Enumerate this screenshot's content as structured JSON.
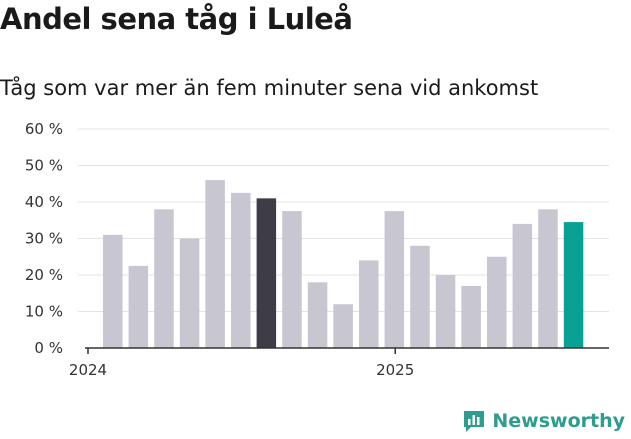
{
  "header": {
    "title": "Andel sena tåg i Luleå",
    "subtitle": "Tåg som var mer än fem minuter sena vid ankomst"
  },
  "brand": {
    "name": "Newsworthy",
    "icon": "newsworthy-logo-icon",
    "color": "#2e9c8f"
  },
  "colors": {
    "default": "#c8c6d1",
    "highlight_dark": "#3d3c47",
    "highlight_latest": "#0aa195",
    "grid": "#e3e3e3",
    "axis": "#333333"
  },
  "chart_data": {
    "type": "bar",
    "title": "Andel sena tåg i Luleå",
    "subtitle": "Tåg som var mer än fem minuter sena vid ankomst",
    "xlabel": "",
    "ylabel": "",
    "x_tick_labels": [
      {
        "label": "2024",
        "index": 0
      },
      {
        "label": "2025",
        "index": 12
      }
    ],
    "y_tick_labels": [
      "0 %",
      "10 %",
      "20 %",
      "30 %",
      "40 %",
      "50 %",
      "60 %"
    ],
    "ylim": [
      0,
      60
    ],
    "grid": true,
    "values": [
      31,
      22.5,
      38,
      30,
      46,
      42.5,
      41,
      37.5,
      18,
      12,
      24,
      37.5,
      28,
      20,
      17,
      25,
      34,
      38,
      34.5
    ],
    "highlight": {
      "dark": [
        6
      ],
      "latest": [
        18
      ]
    }
  }
}
